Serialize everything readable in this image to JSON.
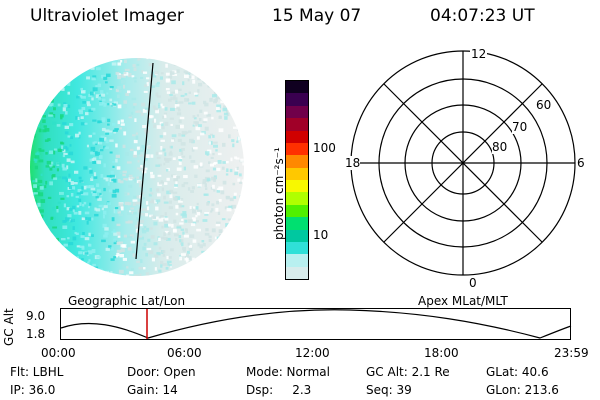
{
  "header": {
    "title": "Ultraviolet Imager",
    "date": "15 May 07",
    "time": "04:07:23 UT"
  },
  "colorbar": {
    "unit_label": "photon cm⁻²s⁻¹",
    "tick_100": "100",
    "tick_10": "10",
    "colors": [
      "#d8ecec",
      "#b8f0f0",
      "#30e0d8",
      "#00c8a0",
      "#00e070",
      "#50f000",
      "#b0ff00",
      "#f8f800",
      "#ffc800",
      "#ff8800",
      "#ff3000",
      "#d00000",
      "#a00028",
      "#70004a",
      "#3a0050",
      "#100020"
    ]
  },
  "polar": {
    "mlt_12": "12",
    "mlt_18": "18",
    "mlt_6": "6",
    "mlt_0": "0",
    "lat_60": "60",
    "lat_70": "70",
    "lat_80": "80"
  },
  "timeline": {
    "left_title": "Geographic Lat/Lon",
    "right_title": "Apex MLat/MLT",
    "axis_label": "GC Alt",
    "y_top": "9.0",
    "y_bottom": "1.8",
    "ticks": [
      "00:00",
      "06:00",
      "12:00",
      "18:00",
      "23:59"
    ],
    "marker_color": "#cc0000"
  },
  "footer": {
    "flt": "Flt: LBHL",
    "door": "Door: Open",
    "mode": "Mode: Normal",
    "gcalt": "GC Alt: 2.1 Re",
    "glat": "GLat:  40.6",
    "ip": "IP: 36.0",
    "gain": "Gain: 14",
    "dsp": "Dsp:     2.3",
    "seq": "Seq: 39",
    "glon": "GLon: 213.6"
  }
}
